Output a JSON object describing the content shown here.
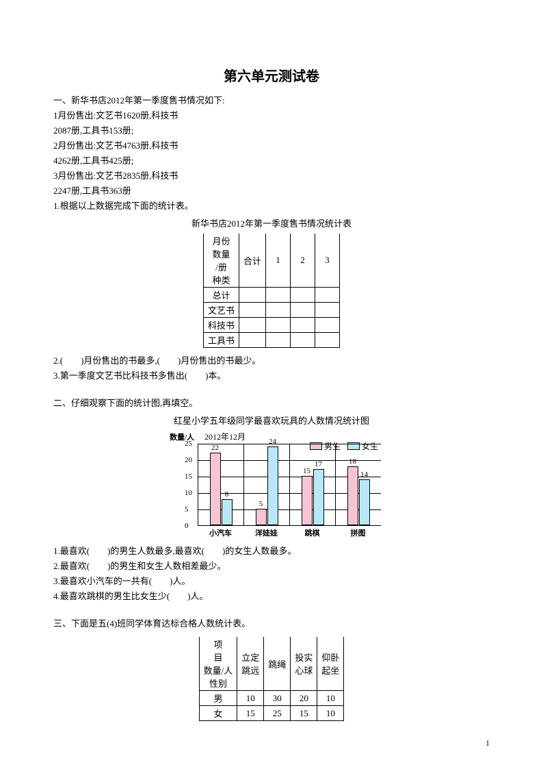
{
  "page": {
    "title": "第六单元测试卷",
    "page_number": "1"
  },
  "section1": {
    "heading": "一、新华书店2012年第一季度售书情况如下:",
    "lines": [
      "1月份售出:文艺书1620册,科技书",
      "2087册,工具书153册;",
      "2月份售出:文艺书4763册,科技书",
      "4262册,工具书425册;",
      "3月份售出:文艺书2835册,科技书",
      "2247册,工具书363册",
      "1.根据以上数据完成下面的统计表。"
    ],
    "table_title": "新华书店2012年第一季度售书情况统计表",
    "table": {
      "header_diag": [
        "月份",
        "数量",
        "/册",
        "种类"
      ],
      "cols": [
        "合计",
        "1",
        "2",
        "3"
      ],
      "rows": [
        "总计",
        "文艺书",
        "科技书",
        "工具书"
      ]
    },
    "q2": "2.(　　)月份售出的书最多,(　　)月份售出的书最少。",
    "q3": "3.第一季度文艺书比科技书多售出(　　)本。"
  },
  "section2": {
    "heading": "二、仔细观察下面的统计图,再填空。",
    "chart_title": "红星小学五年级同学最喜欢玩具的人数情况统计图",
    "chart": {
      "type": "bar",
      "date": "2012年12月",
      "ylabel": "数量/人",
      "ymax": 25,
      "ytick_step": 5,
      "yticks": [
        "0",
        "5",
        "10",
        "15",
        "20",
        "25"
      ],
      "legend": [
        {
          "label": "男生",
          "color": "#f7c4d4"
        },
        {
          "label": "女生",
          "color": "#b8e8f5"
        }
      ],
      "categories": [
        "小汽车",
        "洋娃娃",
        "跳棋",
        "拼图"
      ],
      "series": {
        "boys": [
          22,
          5,
          15,
          18
        ],
        "girls": [
          8,
          24,
          17,
          14
        ]
      },
      "bar_colors": {
        "boys": "#f7c4d4",
        "girls": "#b8e8f5"
      },
      "grid_color": "#000000",
      "background_color": "#ffffff"
    },
    "q1": "1.最喜欢(　　)的男生人数最多,最喜欢(　　)的女生人数最多。",
    "q2": "2.最喜欢(　　)的男生和女生人数相差最少。",
    "q3": "3.最喜欢小汽车的一共有(　　)人。",
    "q4": "4.最喜欢跳棋的男生比女生少(　　)人。"
  },
  "section3": {
    "heading": "三、下面是五(4)班同学体育达标合格人数统计表。",
    "table": {
      "header_diag": [
        "项",
        "目",
        "数量/人",
        "性别"
      ],
      "cols": [
        "立定跳远",
        "跳绳",
        "投实心球",
        "仰卧起坐"
      ],
      "rows": [
        {
          "label": "男",
          "values": [
            "10",
            "30",
            "20",
            "10"
          ]
        },
        {
          "label": "女",
          "values": [
            "15",
            "25",
            "15",
            "10"
          ]
        }
      ]
    }
  }
}
